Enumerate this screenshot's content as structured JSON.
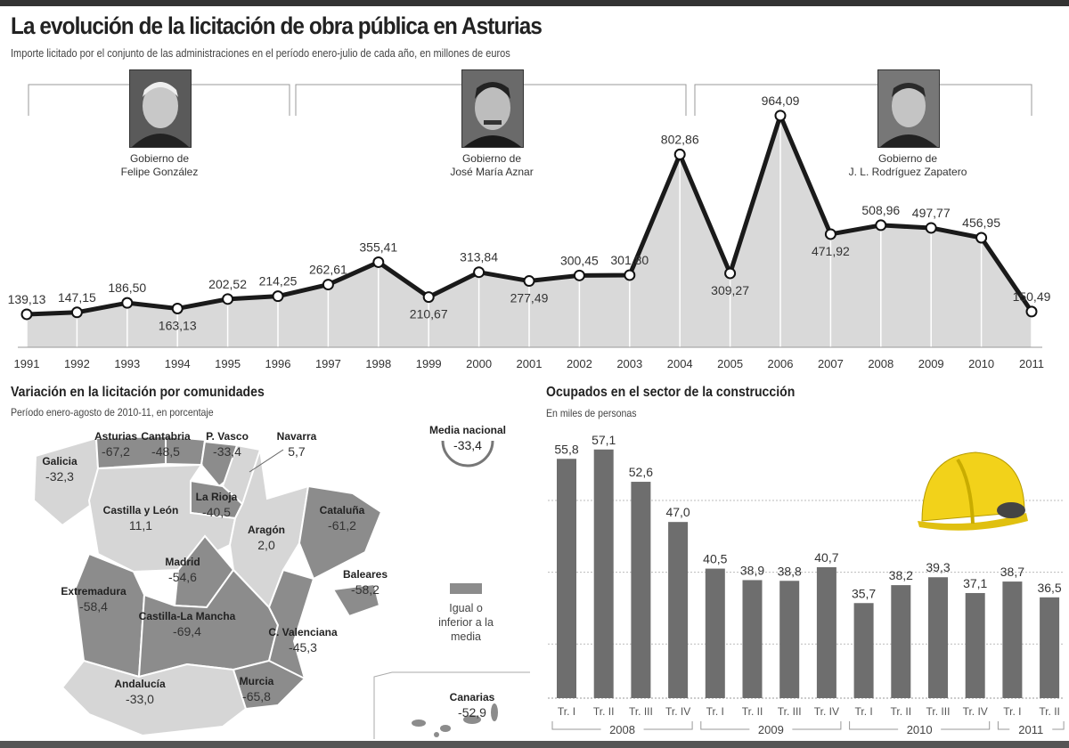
{
  "title": "La evolución de la licitación de obra pública en Asturias",
  "subtitle": "Importe licitado por el conjunto de las administraciones en el período enero-julio de cada año, en millones de euros",
  "governments": [
    {
      "line1": "Gobierno de",
      "line2": "Felipe González",
      "from": 1991,
      "to": 1996
    },
    {
      "line1": "Gobierno de",
      "line2": "José María Aznar",
      "from": 1996,
      "to": 2004
    },
    {
      "line1": "Gobierno de",
      "line2": "J. L. Rodríguez Zapatero",
      "from": 2004,
      "to": 2011
    }
  ],
  "map": {
    "title": "Variación en la licitación por comunidades",
    "subtitle": "Período enero-agosto de 2010-11, en porcentaje",
    "media_label": "Media nacional",
    "media_value": "-33,4",
    "legend": "Igual o inferior a la media",
    "colors": {
      "below_average": "#8c8c8c",
      "above_average": "#d6d6d6",
      "border": "#ffffff"
    },
    "regions": [
      {
        "name": "Galicia",
        "value": "-32,3",
        "below": false
      },
      {
        "name": "Asturias",
        "value": "-67,2",
        "below": true
      },
      {
        "name": "Cantabria",
        "value": "-48,5",
        "below": true
      },
      {
        "name": "P. Vasco",
        "value": "-33,4",
        "below": true
      },
      {
        "name": "Navarra",
        "value": "5,7",
        "below": false
      },
      {
        "name": "La Rioja",
        "value": "-40,5",
        "below": true
      },
      {
        "name": "Castilla y León",
        "value": "11,1",
        "below": false
      },
      {
        "name": "Aragón",
        "value": "2,0",
        "below": false
      },
      {
        "name": "Cataluña",
        "value": "-61,2",
        "below": true
      },
      {
        "name": "Madrid",
        "value": "-54,6",
        "below": true
      },
      {
        "name": "Extremadura",
        "value": "-58,4",
        "below": true
      },
      {
        "name": "Castilla-La Mancha",
        "value": "-69,4",
        "below": true
      },
      {
        "name": "C. Valenciana",
        "value": "-45,3",
        "below": true
      },
      {
        "name": "Baleares",
        "value": "-58,2",
        "below": true
      },
      {
        "name": "Andalucía",
        "value": "-33,0",
        "below": false
      },
      {
        "name": "Murcia",
        "value": "-65,8",
        "below": true
      },
      {
        "name": "Canarias",
        "value": "-52,9",
        "below": true
      }
    ]
  },
  "chart_data": [
    {
      "type": "area",
      "title": "La evolución de la licitación de obra pública en Asturias",
      "subtitle": "Importe licitado por el conjunto de las administraciones en el período enero-julio de cada año, en millones de euros",
      "x": [
        1991,
        1992,
        1993,
        1994,
        1995,
        1996,
        1997,
        1998,
        1999,
        2000,
        2001,
        2002,
        2003,
        2004,
        2005,
        2006,
        2007,
        2008,
        2009,
        2010,
        2011
      ],
      "values": [
        139.13,
        147.15,
        186.5,
        163.13,
        202.52,
        214.25,
        262.61,
        355.41,
        210.67,
        313.84,
        277.49,
        300.45,
        301.8,
        802.86,
        309.27,
        964.09,
        471.92,
        508.96,
        497.77,
        456.95,
        150.49
      ],
      "labels": [
        "139,13",
        "147,15",
        "186,50",
        "163,13",
        "202,52",
        "214,25",
        "262,61",
        "355,41",
        "210,67",
        "313,84",
        "277,49",
        "300,45",
        "301,80",
        "802,86",
        "309,27",
        "964,09",
        "471,92",
        "508,96",
        "497,77",
        "456,95",
        "150,49"
      ],
      "ylim": [
        0,
        1000
      ],
      "grid": false,
      "colors": {
        "line": "#1a1a1a",
        "fill": "#d9d9d9"
      }
    },
    {
      "type": "bar",
      "title": "Ocupados en el sector de la construcción",
      "subtitle": "En miles de personas",
      "categories": [
        "Tr. I",
        "Tr. II",
        "Tr. III",
        "Tr. IV",
        "Tr. I",
        "Tr. II",
        "Tr. III",
        "Tr. IV",
        "Tr. I",
        "Tr. II",
        "Tr. III",
        "Tr. IV",
        "Tr. I",
        "Tr. II"
      ],
      "groups": [
        {
          "label": "2008",
          "count": 4
        },
        {
          "label": "2009",
          "count": 4
        },
        {
          "label": "2010",
          "count": 4
        },
        {
          "label": "2011",
          "count": 2
        }
      ],
      "values": [
        55.8,
        57.1,
        52.6,
        47.0,
        40.5,
        38.9,
        38.8,
        40.7,
        35.7,
        38.2,
        39.3,
        37.1,
        38.7,
        36.5
      ],
      "labels": [
        "55,8",
        "57,1",
        "52,6",
        "47,0",
        "40,5",
        "38,9",
        "38,8",
        "40,7",
        "35,7",
        "38,2",
        "39,3",
        "37,1",
        "38,7",
        "36,5"
      ],
      "ylim": [
        22.5,
        60
      ],
      "grid": true,
      "colors": {
        "bar": "#6e6e6e"
      }
    }
  ]
}
